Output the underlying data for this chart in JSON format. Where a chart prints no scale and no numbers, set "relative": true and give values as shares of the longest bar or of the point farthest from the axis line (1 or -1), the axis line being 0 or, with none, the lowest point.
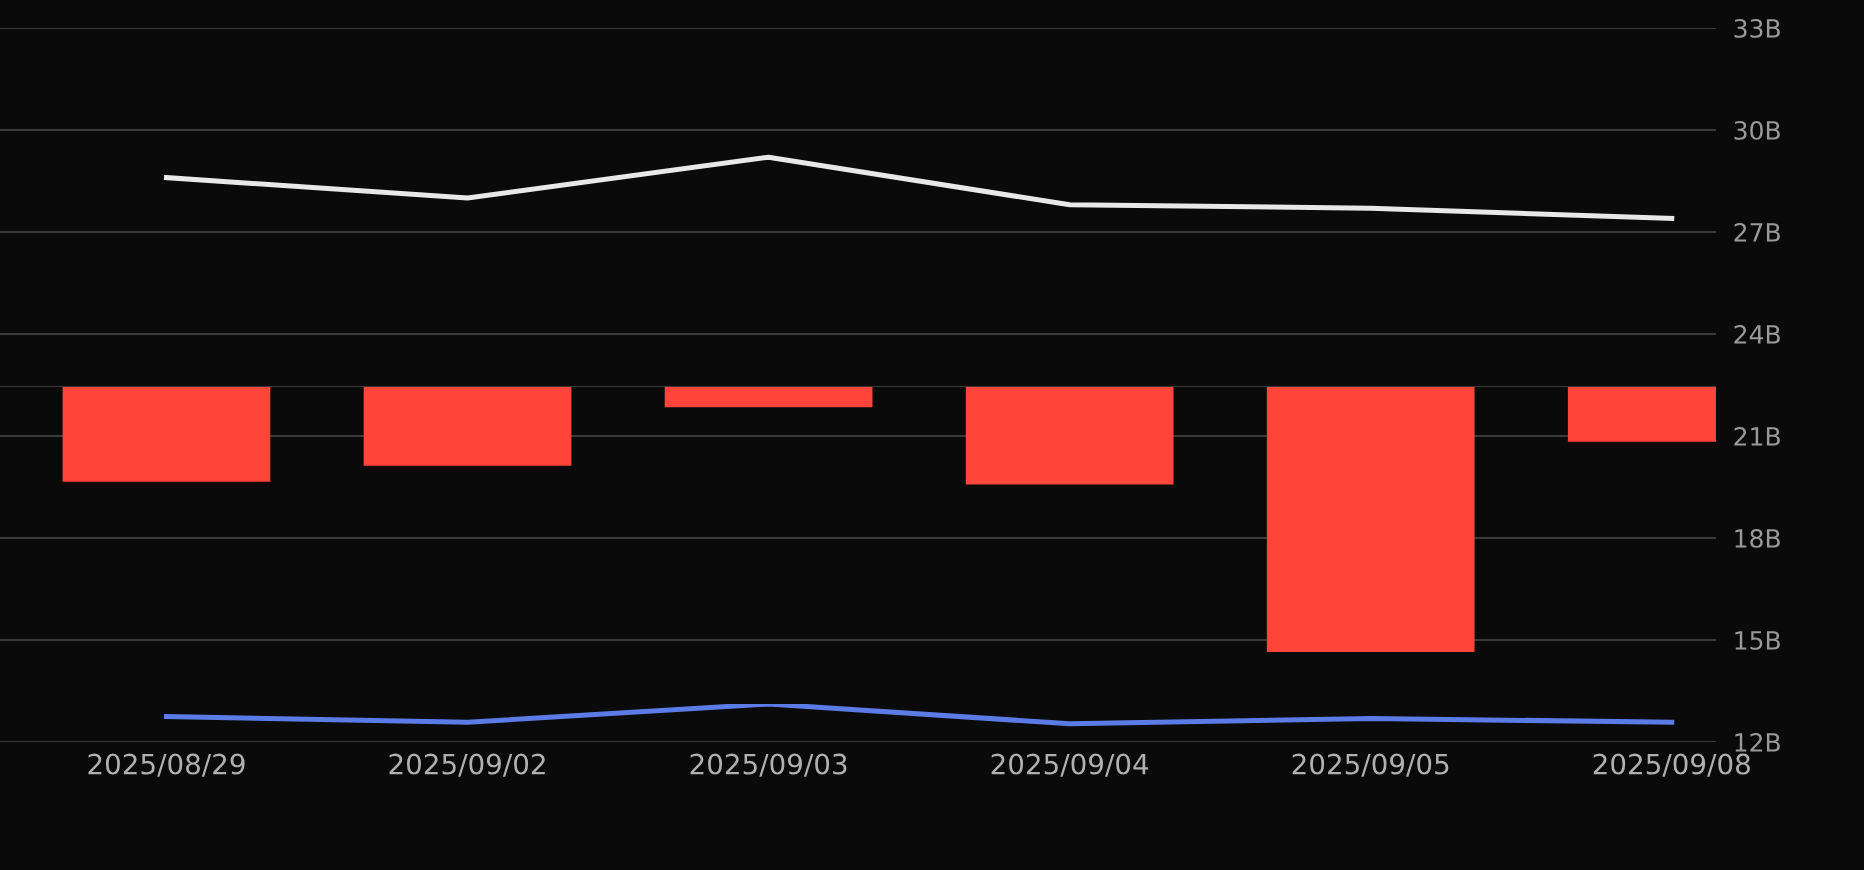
{
  "chart_data": [
    {
      "type": "line",
      "categories": [
        "2025/08/29",
        "2025/09/02",
        "2025/09/03",
        "2025/09/04",
        "2025/09/05",
        "2025/09/08"
      ],
      "series": [
        {
          "color": "#e8e8e8",
          "values": [
            28.6,
            28.0,
            29.2,
            27.8,
            27.7,
            27.4
          ]
        }
      ],
      "ylim": [
        12,
        33
      ],
      "yticks": [
        {
          "value": 12,
          "label": "12B"
        },
        {
          "value": 15,
          "label": "15B"
        },
        {
          "value": 18,
          "label": "18B"
        },
        {
          "value": 21,
          "label": "21B"
        },
        {
          "value": 24,
          "label": "24B"
        },
        {
          "value": 27,
          "label": "27B"
        },
        {
          "value": 30,
          "label": "30B"
        },
        {
          "value": 33,
          "label": "33B"
        }
      ],
      "grid": "y"
    },
    {
      "type": "bar",
      "relative": true,
      "tick_labels": false,
      "categories": [
        "2025/08/29",
        "2025/09/02",
        "2025/09/03",
        "2025/09/04",
        "2025/09/05",
        "2025/09/08"
      ],
      "series": [
        {
          "color": "#ff453a",
          "values": [
            -0.36,
            -0.3,
            -0.08,
            -0.37,
            -1,
            -0.21
          ]
        }
      ]
    },
    {
      "type": "line",
      "relative": true,
      "tick_labels": false,
      "categories": [
        "2025/08/29",
        "2025/09/02",
        "2025/09/03",
        "2025/09/04",
        "2025/09/05",
        "2025/09/08"
      ],
      "series": [
        {
          "color": "#5b7be6",
          "values": [
            0.67,
            0.52,
            1,
            0.48,
            0.62,
            0.52
          ]
        }
      ]
    }
  ]
}
